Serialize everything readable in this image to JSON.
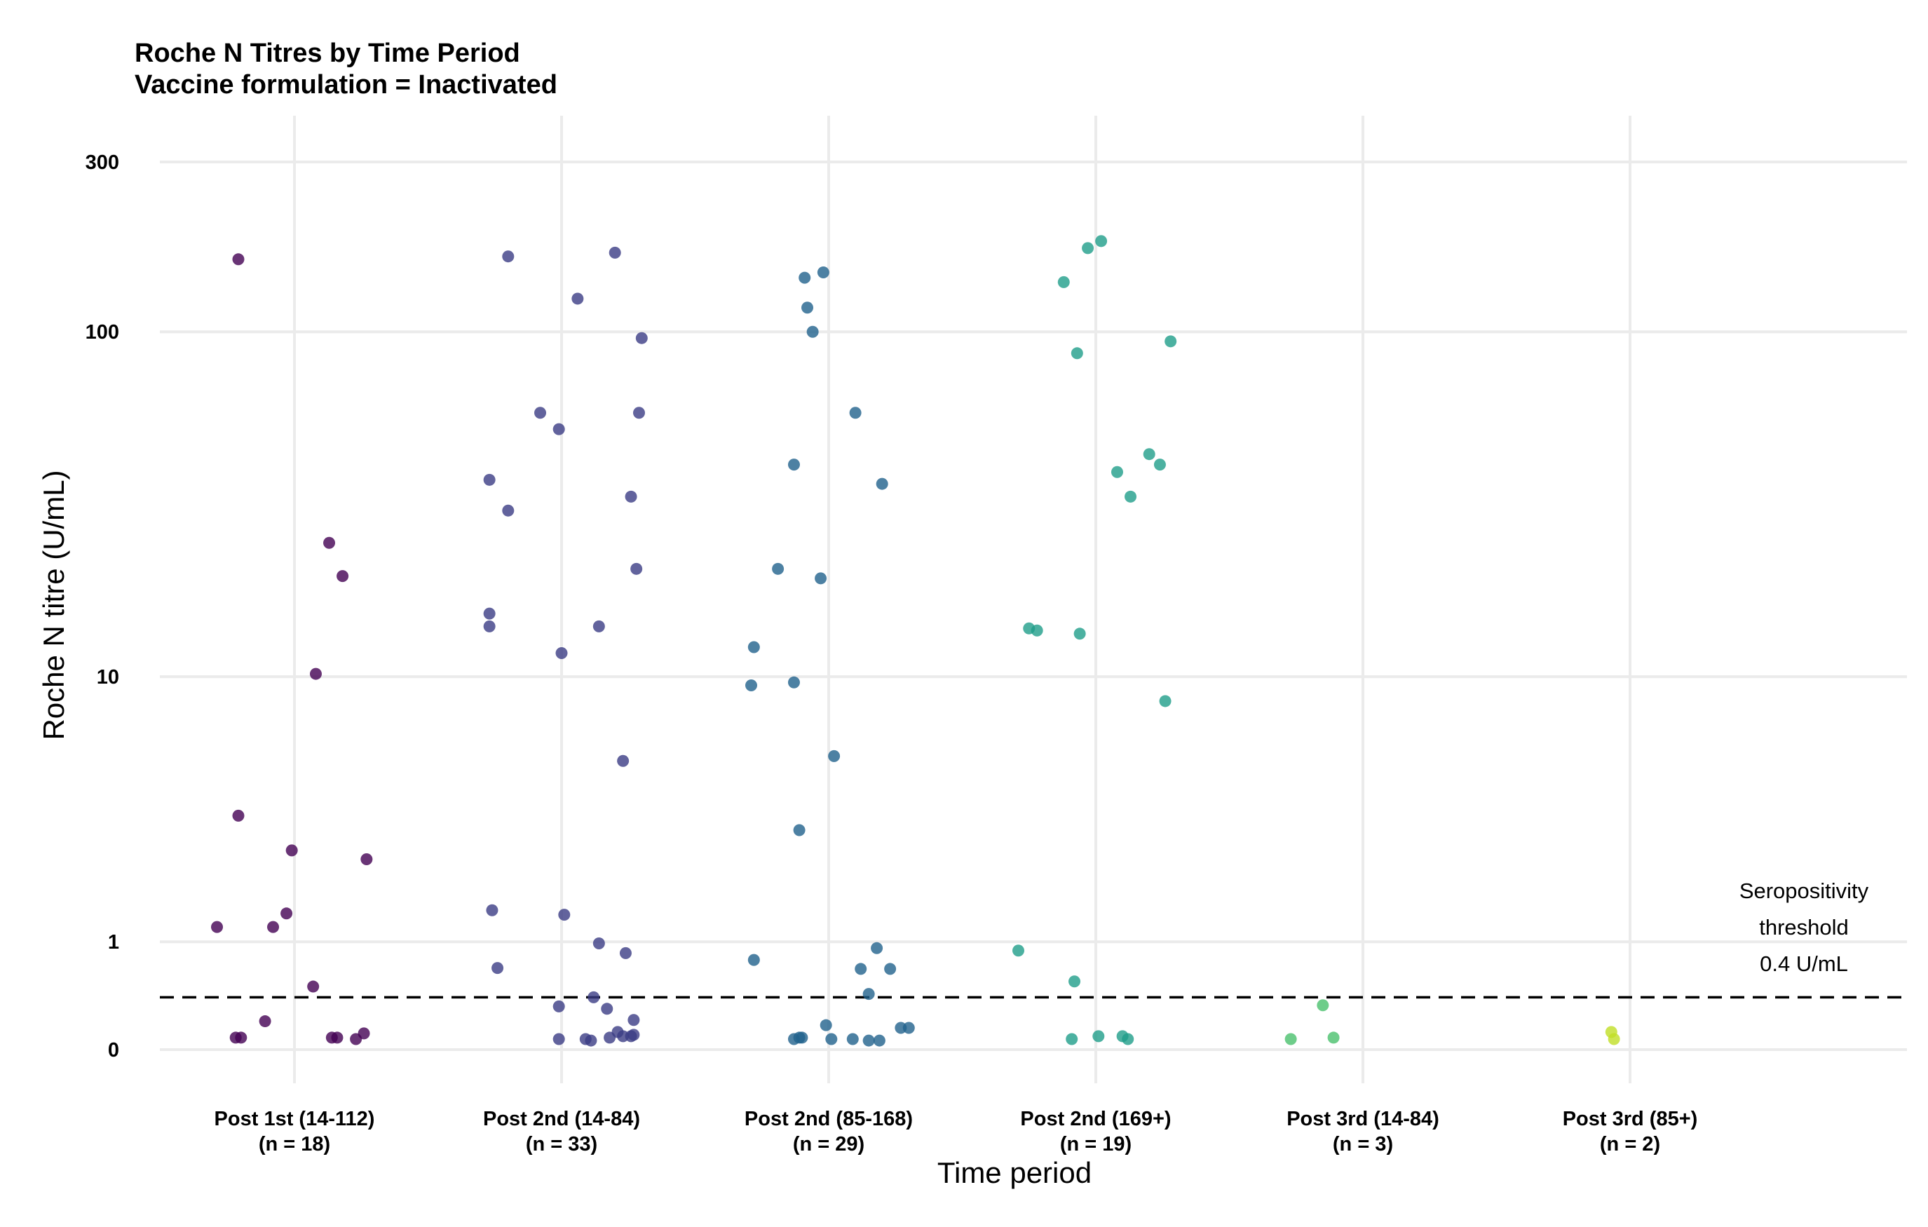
{
  "chart_data": {
    "type": "scatter",
    "title": "Roche N Titres by Time Period",
    "subtitle": "Vaccine formulation = Inactivated",
    "xlabel": "Time period",
    "ylabel": "Roche N titre (U/mL)",
    "y_scale": "pseudo-log",
    "y_ticks": [
      "0",
      "1",
      "10",
      "100",
      "300"
    ],
    "ylim": [
      0,
      450
    ],
    "grid": true,
    "threshold": {
      "value": 0.4,
      "label_lines": [
        "Seropositivity",
        "threshold",
        "0.4 U/mL"
      ]
    },
    "categories": [
      {
        "label": "Post 1st (14-112)",
        "n_label": "(n = 18)",
        "color": "#440154"
      },
      {
        "label": "Post 2nd (14-84)",
        "n_label": "(n = 33)",
        "color": "#3b3c85"
      },
      {
        "label": "Post 2nd (85-168)",
        "n_label": "(n = 29)",
        "color": "#21628c"
      },
      {
        "label": "Post 2nd (169+)",
        "n_label": "(n = 19)",
        "color": "#1f9e89"
      },
      {
        "label": "Post 3rd (14-84)",
        "n_label": "(n = 3)",
        "color": "#4ac16d"
      },
      {
        "label": "Post 3rd (85+)",
        "n_label": "(n = 2)",
        "color": "#c0df25"
      }
    ],
    "series": [
      {
        "category": "Post 1st (14-112)",
        "points": [
          {
            "jitter": -0.21,
            "y": 160
          },
          {
            "jitter": 0.13,
            "y": 25
          },
          {
            "jitter": 0.18,
            "y": 20
          },
          {
            "jitter": 0.08,
            "y": 10.2
          },
          {
            "jitter": -0.21,
            "y": 3.5
          },
          {
            "jitter": -0.01,
            "y": 2.6
          },
          {
            "jitter": 0.27,
            "y": 2.4
          },
          {
            "jitter": -0.03,
            "y": 1.4
          },
          {
            "jitter": -0.29,
            "y": 1.2
          },
          {
            "jitter": -0.08,
            "y": 1.2
          },
          {
            "jitter": 0.07,
            "y": 0.5
          },
          {
            "jitter": -0.11,
            "y": 0.2
          },
          {
            "jitter": -0.22,
            "y": 0.08
          },
          {
            "jitter": -0.2,
            "y": 0.08
          },
          {
            "jitter": 0.14,
            "y": 0.08
          },
          {
            "jitter": 0.16,
            "y": 0.08
          },
          {
            "jitter": 0.23,
            "y": 0.07
          },
          {
            "jitter": 0.26,
            "y": 0.11
          }
        ]
      },
      {
        "category": "Post 2nd (14-84)",
        "points": [
          {
            "jitter": -0.2,
            "y": 163
          },
          {
            "jitter": 0.2,
            "y": 167
          },
          {
            "jitter": 0.06,
            "y": 124
          },
          {
            "jitter": 0.3,
            "y": 96
          },
          {
            "jitter": -0.08,
            "y": 59
          },
          {
            "jitter": -0.01,
            "y": 53
          },
          {
            "jitter": 0.29,
            "y": 59
          },
          {
            "jitter": -0.27,
            "y": 38
          },
          {
            "jitter": -0.2,
            "y": 31
          },
          {
            "jitter": 0.26,
            "y": 34
          },
          {
            "jitter": 0.28,
            "y": 21
          },
          {
            "jitter": -0.27,
            "y": 15.5
          },
          {
            "jitter": -0.27,
            "y": 14.2
          },
          {
            "jitter": 0.14,
            "y": 14.2
          },
          {
            "jitter": 0,
            "y": 11.8
          },
          {
            "jitter": 0.23,
            "y": 5.4
          },
          {
            "jitter": -0.26,
            "y": 1.45
          },
          {
            "jitter": 0.01,
            "y": 1.38
          },
          {
            "jitter": 0.14,
            "y": 0.98
          },
          {
            "jitter": 0.24,
            "y": 0.86
          },
          {
            "jitter": -0.24,
            "y": 0.69
          },
          {
            "jitter": -0.01,
            "y": 0.32
          },
          {
            "jitter": 0.12,
            "y": 0.4
          },
          {
            "jitter": 0.17,
            "y": 0.3
          },
          {
            "jitter": 0.27,
            "y": 0.21
          },
          {
            "jitter": -0.01,
            "y": 0.07
          },
          {
            "jitter": 0.09,
            "y": 0.07
          },
          {
            "jitter": 0.11,
            "y": 0.06
          },
          {
            "jitter": 0.18,
            "y": 0.08
          },
          {
            "jitter": 0.21,
            "y": 0.12
          },
          {
            "jitter": 0.23,
            "y": 0.09
          },
          {
            "jitter": 0.26,
            "y": 0.09
          },
          {
            "jitter": 0.27,
            "y": 0.1
          }
        ]
      },
      {
        "category": "Post 2nd (85-168)",
        "points": [
          {
            "jitter": -0.09,
            "y": 142
          },
          {
            "jitter": -0.02,
            "y": 147
          },
          {
            "jitter": -0.08,
            "y": 117
          },
          {
            "jitter": -0.06,
            "y": 100
          },
          {
            "jitter": 0.1,
            "y": 59
          },
          {
            "jitter": -0.13,
            "y": 42
          },
          {
            "jitter": 0.2,
            "y": 37
          },
          {
            "jitter": -0.19,
            "y": 21
          },
          {
            "jitter": -0.03,
            "y": 19.7
          },
          {
            "jitter": -0.28,
            "y": 12.3
          },
          {
            "jitter": -0.29,
            "y": 9.4
          },
          {
            "jitter": -0.13,
            "y": 9.6
          },
          {
            "jitter": 0.02,
            "y": 5.6
          },
          {
            "jitter": -0.11,
            "y": 3.1
          },
          {
            "jitter": 0.18,
            "y": 0.92
          },
          {
            "jitter": -0.28,
            "y": 0.78
          },
          {
            "jitter": 0.12,
            "y": 0.68
          },
          {
            "jitter": 0.23,
            "y": 0.68
          },
          {
            "jitter": 0.15,
            "y": 0.43
          },
          {
            "jitter": -0.13,
            "y": 0.07
          },
          {
            "jitter": -0.11,
            "y": 0.08
          },
          {
            "jitter": -0.1,
            "y": 0.08
          },
          {
            "jitter": -0.01,
            "y": 0.17
          },
          {
            "jitter": 0.01,
            "y": 0.07
          },
          {
            "jitter": 0.09,
            "y": 0.07
          },
          {
            "jitter": 0.15,
            "y": 0.06
          },
          {
            "jitter": 0.19,
            "y": 0.06
          },
          {
            "jitter": 0.27,
            "y": 0.15
          },
          {
            "jitter": 0.3,
            "y": 0.15
          }
        ]
      },
      {
        "category": "Post 2nd (169+)",
        "points": [
          {
            "jitter": -0.03,
            "y": 172
          },
          {
            "jitter": 0.02,
            "y": 180
          },
          {
            "jitter": -0.12,
            "y": 138
          },
          {
            "jitter": -0.07,
            "y": 87
          },
          {
            "jitter": 0.28,
            "y": 94
          },
          {
            "jitter": 0.2,
            "y": 45
          },
          {
            "jitter": 0.24,
            "y": 42
          },
          {
            "jitter": 0.08,
            "y": 40
          },
          {
            "jitter": 0.13,
            "y": 34
          },
          {
            "jitter": -0.25,
            "y": 14
          },
          {
            "jitter": -0.22,
            "y": 13.8
          },
          {
            "jitter": -0.06,
            "y": 13.5
          },
          {
            "jitter": 0.26,
            "y": 8.4
          },
          {
            "jitter": -0.29,
            "y": 0.89
          },
          {
            "jitter": -0.08,
            "y": 0.55
          },
          {
            "jitter": -0.09,
            "y": 0.07
          },
          {
            "jitter": 0.01,
            "y": 0.09
          },
          {
            "jitter": 0.1,
            "y": 0.09
          },
          {
            "jitter": 0.12,
            "y": 0.07
          }
        ]
      },
      {
        "category": "Post 3rd (14-84)",
        "points": [
          {
            "jitter": -0.15,
            "y": 0.33
          },
          {
            "jitter": -0.27,
            "y": 0.07
          },
          {
            "jitter": -0.11,
            "y": 0.08
          }
        ]
      },
      {
        "category": "Post 3rd (85+)",
        "points": [
          {
            "jitter": -0.07,
            "y": 0.12
          },
          {
            "jitter": -0.06,
            "y": 0.07
          }
        ]
      }
    ]
  }
}
